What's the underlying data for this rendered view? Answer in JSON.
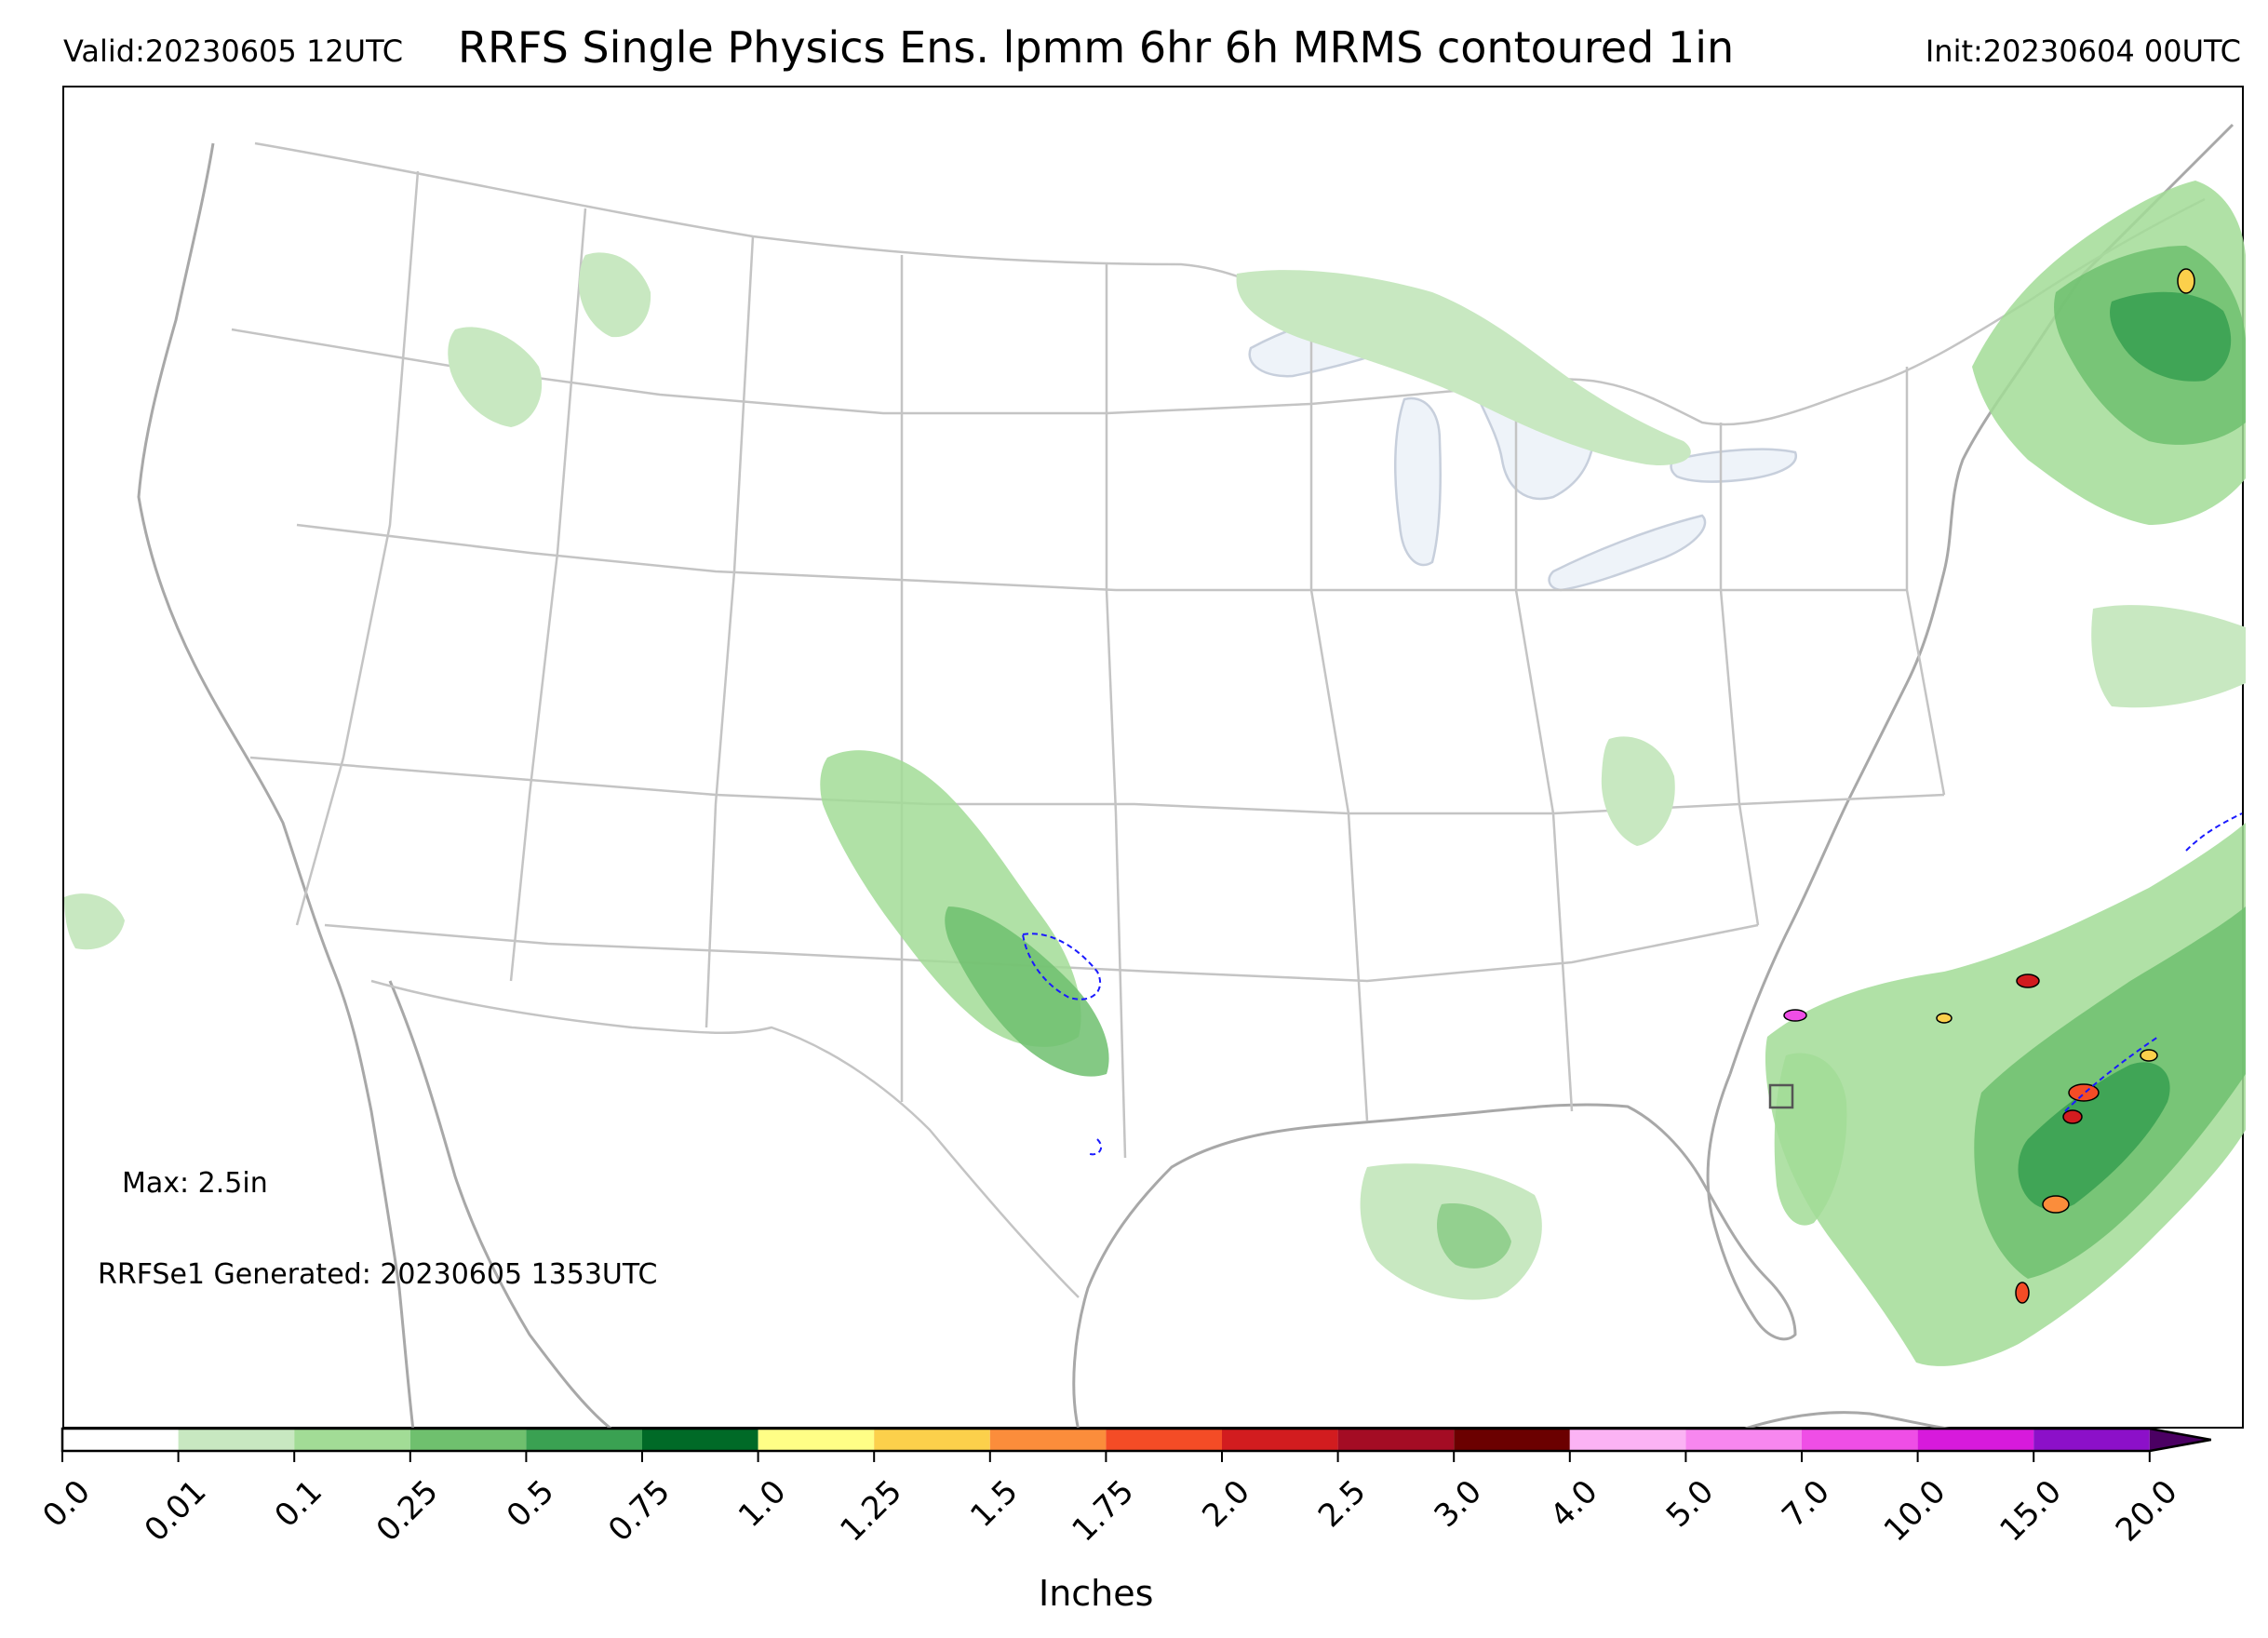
{
  "header": {
    "valid": "Valid:20230605 12UTC",
    "title": "RRFS Single Physics Ens. lpmm 6hr 6h MRMS contoured 1in",
    "init": "Init:20230604 00UTC"
  },
  "map": {
    "max_label": "Max: 2.5in",
    "generated_label": "RRFSe1 Generated: 20230605 1353UTC",
    "contour_color": "#1a1aff",
    "contour_threshold_in": 1,
    "lake_color": "#eef3f9",
    "boundary_color": "#bdbdbd",
    "coast_color": "#a8a8a8"
  },
  "colorbar": {
    "label": "Inches",
    "ticks": [
      "0.0",
      "0.01",
      "0.1",
      "0.25",
      "0.5",
      "0.75",
      "1.0",
      "1.25",
      "1.5",
      "1.75",
      "2.0",
      "2.5",
      "3.0",
      "4.0",
      "5.0",
      "7.0",
      "10.0",
      "15.0",
      "20.0"
    ],
    "colors": [
      "#ffffff",
      "#c8e8c1",
      "#a2dc96",
      "#6fc06e",
      "#3aa152",
      "#006a27",
      "#fffe86",
      "#fcd04b",
      "#fb8d3b",
      "#f44c26",
      "#d21c1f",
      "#a40c24",
      "#6b0000",
      "#fbb3f4",
      "#f787ef",
      "#ef4ee6",
      "#d71adc",
      "#8c10c9"
    ],
    "extend": "max"
  }
}
